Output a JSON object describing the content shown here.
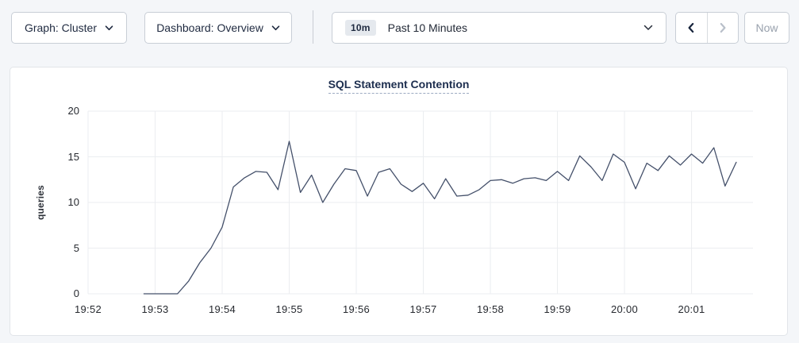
{
  "topbar": {
    "graph_dropdown_label": "Graph: Cluster",
    "dashboard_dropdown_label": "Dashboard: Overview",
    "time_window_badge": "10m",
    "time_window_label": "Past 10 Minutes",
    "now_button_label": "Now"
  },
  "colors": {
    "page_bg": "#f4f6f9",
    "text_navy": "#1f2a40",
    "disabled_text": "#99a1ad",
    "disabled_icon": "#b8bfc9",
    "gridline": "#ebedf0",
    "line": "#44506a",
    "title": "#1d2e4f"
  },
  "chart_data": {
    "type": "line",
    "title": "SQL Statement Contention",
    "ylabel": "queries",
    "xlabel": "",
    "ylim": [
      0,
      20
    ],
    "yticks": [
      0,
      5,
      10,
      15,
      20
    ],
    "x_ticks": [
      "19:52",
      "19:53",
      "19:54",
      "19:55",
      "19:56",
      "19:57",
      "19:58",
      "19:59",
      "20:00",
      "20:01"
    ],
    "x_axis_start": "19:52:00",
    "x_axis_span_seconds": 595,
    "grid": true,
    "legend": "none",
    "line_color": "#44506a",
    "series": [
      {
        "name": "SQL Statement Contention",
        "start_time": "19:52:50",
        "interval_seconds": 10,
        "values": [
          0,
          0,
          0,
          0,
          1.4,
          3.4,
          5,
          7.3,
          11.7,
          12.7,
          13.4,
          13.3,
          11.4,
          16.7,
          11.1,
          13,
          10,
          12,
          13.7,
          13.5,
          10.7,
          13.3,
          13.7,
          12,
          11.2,
          12.1,
          10.4,
          12.6,
          10.7,
          10.8,
          11.4,
          12.4,
          12.5,
          12.1,
          12.6,
          12.7,
          12.4,
          13.4,
          12.4,
          15.1,
          13.9,
          12.4,
          15.3,
          14.4,
          11.5,
          14.3,
          13.5,
          15.1,
          14.1,
          15.3,
          14.3,
          16,
          11.8,
          14.4
        ]
      }
    ]
  }
}
